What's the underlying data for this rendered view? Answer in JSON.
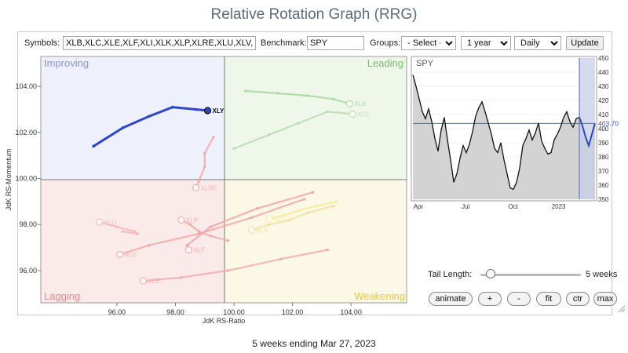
{
  "page_title": "Relative Rotation Graph (RRG)",
  "toolbar": {
    "symbols_label": "Symbols:",
    "symbols_value": "XLB,XLC,XLE,XLF,XLI,XLK,XLP,XLRE,XLU,XLV,XLY",
    "benchmark_label": "Benchmark:",
    "benchmark_value": "SPY",
    "groups_label": "Groups:",
    "groups_value": "- Select -",
    "period_value": "1 year",
    "interval_value": "Daily",
    "update_label": "Update"
  },
  "quadrants": {
    "improving": "Improving",
    "leading": "Leading",
    "lagging": "Lagging",
    "weakening": "Weakening",
    "colors": {
      "improving_bg": "#eef0fb",
      "improving_text": "#8a95d6",
      "leading_bg": "#eef7ea",
      "leading_text": "#7bbf6a",
      "lagging_bg": "#fbeaea",
      "lagging_text": "#e08b8b",
      "weakening_bg": "#fbf8e6",
      "weakening_text": "#e8c84a"
    }
  },
  "axes": {
    "x_label": "JdK RS-Ratio",
    "y_label": "JdK RS-Momentum",
    "x_ticks": [
      "96.00",
      "98.00",
      "100.00",
      "102.00",
      "104.00"
    ],
    "y_ticks": [
      "104.00",
      "102.00",
      "100.00",
      "98.00",
      "96.00"
    ]
  },
  "chart_data": [
    {
      "type": "scatter",
      "title": "",
      "xlabel": "JdK RS-Ratio",
      "ylabel": "JdK RS-Momentum",
      "xlim": [
        93.4,
        105.9
      ],
      "ylim": [
        94.6,
        105.3
      ],
      "center": [
        100,
        100
      ],
      "series": [
        {
          "name": "XLY",
          "color": "#2d47c8",
          "highlight": true,
          "points": [
            [
              95.2,
              101.4
            ],
            [
              96.2,
              102.2
            ],
            [
              97.1,
              102.7
            ],
            [
              97.9,
              103.1
            ],
            [
              98.7,
              103.0
            ],
            [
              99.1,
              102.95
            ]
          ]
        },
        {
          "name": "XLK",
          "color": "#a8d8a0",
          "points": [
            [
              100.4,
              103.8
            ],
            [
              101.5,
              103.7
            ],
            [
              102.5,
              103.6
            ],
            [
              103.4,
              103.45
            ],
            [
              103.95,
              103.25
            ]
          ]
        },
        {
          "name": "XLC",
          "color": "#b8ddb0",
          "points": [
            [
              100.0,
              101.3
            ],
            [
              101.2,
              101.9
            ],
            [
              102.2,
              102.4
            ],
            [
              103.2,
              102.9
            ],
            [
              104.05,
              102.8
            ]
          ]
        },
        {
          "name": "XLRE",
          "color": "#f2a8a8",
          "points": [
            [
              99.3,
              101.8
            ],
            [
              99.0,
              101.1
            ],
            [
              99.0,
              100.5
            ],
            [
              98.8,
              99.9
            ],
            [
              98.7,
              99.6
            ]
          ]
        },
        {
          "name": "XLU",
          "color": "#f6b8b8",
          "points": [
            [
              96.2,
              97.7
            ],
            [
              96.7,
              97.6
            ],
            [
              96.6,
              97.7
            ],
            [
              96.0,
              97.9
            ],
            [
              95.4,
              98.1
            ]
          ]
        },
        {
          "name": "XLP",
          "color": "#f2aaaa",
          "points": [
            [
              99.8,
              97.3
            ],
            [
              99.2,
              97.5
            ],
            [
              98.8,
              97.7
            ],
            [
              98.5,
              98.0
            ],
            [
              98.2,
              98.2
            ]
          ]
        },
        {
          "name": "XLV",
          "color": "#f3a8a8",
          "points": [
            [
              102.4,
              99.1
            ],
            [
              100.6,
              98.3
            ],
            [
              98.8,
              97.6
            ],
            [
              97.1,
              97.1
            ],
            [
              96.1,
              96.7
            ]
          ]
        },
        {
          "name": "XLF",
          "color": "#f2a6a6",
          "points": [
            [
              102.7,
              99.4
            ],
            [
              100.8,
              98.7
            ],
            [
              99.2,
              97.9
            ],
            [
              98.4,
              97.1
            ],
            [
              98.45,
              96.9
            ]
          ]
        },
        {
          "name": "XLE",
          "color": "#f4acac",
          "points": [
            [
              103.2,
              96.9
            ],
            [
              101.6,
              96.5
            ],
            [
              99.8,
              96.0
            ],
            [
              98.2,
              95.7
            ],
            [
              96.9,
              95.55
            ]
          ]
        },
        {
          "name": "XLB",
          "color": "#f5dfa0",
          "points": [
            [
              103.4,
              98.8
            ],
            [
              102.5,
              98.5
            ],
            [
              101.9,
              98.2
            ],
            [
              101.2,
              98.0
            ],
            [
              100.6,
              97.75
            ]
          ]
        },
        {
          "name": "XLI",
          "color": "#f7ea9a",
          "points": [
            [
              103.5,
              99.0
            ],
            [
              102.8,
              98.8
            ],
            [
              102.2,
              98.6
            ],
            [
              101.7,
              98.4
            ],
            [
              101.2,
              98.25
            ]
          ]
        }
      ]
    },
    {
      "type": "line",
      "title": "SPY",
      "ylim": [
        350,
        450
      ],
      "yticks": [
        350,
        360,
        370,
        380,
        390,
        400,
        410,
        420,
        430,
        440,
        450
      ],
      "x_tick_labels": [
        "Apr",
        "Jul",
        "Oct",
        "2023"
      ],
      "last_value": "403.70",
      "values": [
        438,
        430,
        421,
        412,
        407,
        414,
        405,
        393,
        384,
        399,
        408,
        392,
        378,
        362,
        368,
        379,
        388,
        383,
        389,
        398,
        409,
        415,
        419,
        412,
        404,
        396,
        386,
        383,
        390,
        378,
        368,
        358,
        357,
        362,
        372,
        388,
        393,
        399,
        392,
        397,
        404,
        391,
        386,
        382,
        383,
        392,
        396,
        401,
        408,
        412,
        405,
        401,
        407,
        408,
        402,
        394,
        388,
        396,
        403.7
      ]
    }
  ],
  "controls": {
    "tail_label": "Tail Length:",
    "tail_value": "5 weeks",
    "tail_fraction": 0.1,
    "buttons": [
      "animate",
      "+",
      "-",
      "fit",
      "ctr",
      "max"
    ]
  },
  "footer": "5 weeks ending Mar 27, 2023"
}
